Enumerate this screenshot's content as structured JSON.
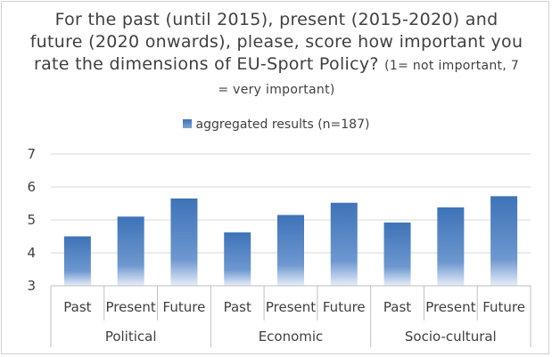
{
  "chart_data": {
    "type": "bar",
    "title_main": "For the past (until 2015), present (2015-2020) and future (2020 onwards), please, score how important you rate the dimensions of EU-Sport Policy?",
    "title_note": "(1= not important, 7 = very important)",
    "series": [
      {
        "name": "aggregated results (n=187)",
        "color": "#4a7fc1",
        "values": [
          4.5,
          5.1,
          5.65,
          4.62,
          5.15,
          5.52,
          4.92,
          5.38,
          5.72
        ]
      }
    ],
    "categories": [
      "Past",
      "Present",
      "Future",
      "Past",
      "Present",
      "Future",
      "Past",
      "Present",
      "Future"
    ],
    "groups": [
      "Political",
      "Economic",
      "Socio-cultural"
    ],
    "ylim": [
      3,
      7
    ],
    "yticks": [
      "3",
      "4",
      "5",
      "6",
      "7"
    ],
    "grid": true,
    "legend_position": "top"
  }
}
